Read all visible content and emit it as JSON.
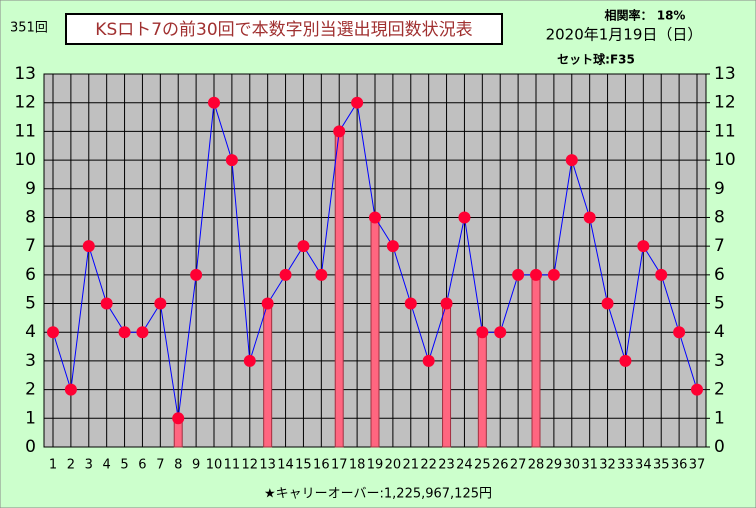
{
  "chart_data": {
    "type": "line",
    "draw_label": "351回",
    "title": "KSロト7の前30回で本数字別当選出現回数状況表",
    "correlation": "相関率： 18%",
    "date": "2020年1月19日（日）",
    "set_ball": "セット球:F35",
    "carryover": "★キャリーオーバー:1,225,967,125円",
    "categories": [
      "1",
      "2",
      "3",
      "4",
      "5",
      "6",
      "7",
      "8",
      "9",
      "10",
      "11",
      "12",
      "13",
      "14",
      "15",
      "16",
      "17",
      "18",
      "19",
      "20",
      "21",
      "22",
      "23",
      "24",
      "25",
      "26",
      "27",
      "28",
      "29",
      "30",
      "31",
      "32",
      "33",
      "34",
      "35",
      "36",
      "37"
    ],
    "series": [
      {
        "type": "bar",
        "color": "#ff6680",
        "values": [
          null,
          null,
          null,
          null,
          null,
          null,
          null,
          1,
          null,
          null,
          null,
          null,
          5,
          null,
          null,
          null,
          11,
          null,
          8,
          null,
          null,
          null,
          5,
          null,
          4,
          null,
          null,
          6,
          null,
          null,
          null,
          null,
          null,
          null,
          null,
          null,
          null
        ]
      },
      {
        "type": "line",
        "color": "#0000ff",
        "marker_color": "#ff0033",
        "values": [
          4,
          2,
          7,
          5,
          4,
          4,
          5,
          1,
          6,
          12,
          10,
          3,
          5,
          6,
          7,
          6,
          11,
          12,
          8,
          7,
          5,
          3,
          5,
          8,
          4,
          4,
          6,
          6,
          6,
          10,
          8,
          5,
          3,
          7,
          6,
          4,
          2
        ]
      }
    ],
    "ylim": [
      0,
      13
    ],
    "yticks": [
      0,
      1,
      2,
      3,
      4,
      5,
      6,
      7,
      8,
      9,
      10,
      11,
      12,
      13
    ],
    "y2lim": [
      0,
      13
    ],
    "y2ticks": [
      0,
      1,
      2,
      3,
      4,
      5,
      6,
      7,
      8,
      9,
      10,
      11,
      12,
      13
    ],
    "grid": true
  }
}
